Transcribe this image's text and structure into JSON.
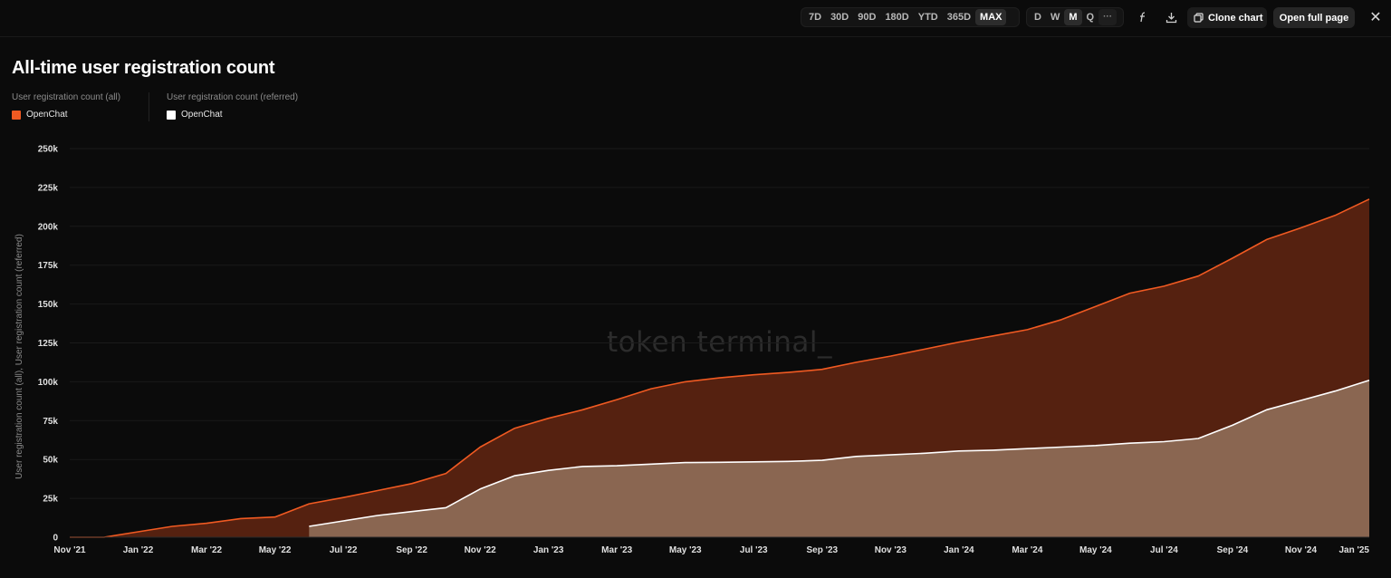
{
  "toolbar": {
    "ranges": [
      "7D",
      "30D",
      "90D",
      "180D",
      "YTD",
      "365D",
      "MAX"
    ],
    "active_range": "MAX",
    "granularity": [
      "D",
      "W",
      "M",
      "Q"
    ],
    "active_granularity": "M",
    "more_label": "···",
    "clone_label": "Clone chart",
    "open_full_label": "Open full page",
    "formula_icon": "function-icon",
    "download_icon": "download-icon",
    "close_icon": "close-icon"
  },
  "chart_data": {
    "type": "area",
    "title": "All-time user registration count",
    "ylabel": "User registration count (all), User registration count (referred)",
    "ylim": [
      0,
      250000
    ],
    "y_ticks": [
      "0",
      "25k",
      "50k",
      "75k",
      "100k",
      "125k",
      "150k",
      "175k",
      "200k",
      "225k",
      "250k"
    ],
    "x_ticks": [
      "Nov '21",
      "Jan '22",
      "Mar '22",
      "May '22",
      "Jul '22",
      "Sep '22",
      "Nov '22",
      "Jan '23",
      "Mar '23",
      "May '23",
      "Jul '23",
      "Sep '23",
      "Nov '23",
      "Jan '24",
      "Mar '24",
      "May '24",
      "Jul '24",
      "Sep '24",
      "Nov '24",
      "Jan '25"
    ],
    "x": [
      "2021-11",
      "2021-12",
      "2022-01",
      "2022-02",
      "2022-03",
      "2022-04",
      "2022-05",
      "2022-06",
      "2022-07",
      "2022-08",
      "2022-09",
      "2022-10",
      "2022-11",
      "2022-12",
      "2023-01",
      "2023-02",
      "2023-03",
      "2023-04",
      "2023-05",
      "2023-06",
      "2023-07",
      "2023-08",
      "2023-09",
      "2023-10",
      "2023-11",
      "2023-12",
      "2024-01",
      "2024-02",
      "2024-03",
      "2024-04",
      "2024-05",
      "2024-06",
      "2024-07",
      "2024-08",
      "2024-09",
      "2024-10",
      "2024-11",
      "2024-12",
      "2025-01"
    ],
    "legend_placement": "top-left",
    "grid": true,
    "series": [
      {
        "group": "User registration count (all)",
        "name": "OpenChat",
        "color": "#f05a22",
        "fill": "#552110",
        "values": [
          0,
          0,
          3500,
          7000,
          9000,
          12000,
          13000,
          21500,
          25500,
          30000,
          34500,
          41000,
          58000,
          70000,
          76500,
          82000,
          88500,
          95500,
          100000,
          102500,
          104500,
          106000,
          108000,
          112500,
          116500,
          121000,
          125500,
          129500,
          133500,
          140000,
          148500,
          157000,
          161500,
          168000,
          179500,
          191500,
          199000,
          207000,
          217500
        ]
      },
      {
        "group": "User registration count (referred)",
        "name": "OpenChat",
        "color": "#ffffff",
        "fill": "#8a6651",
        "values": [
          null,
          null,
          null,
          null,
          null,
          null,
          null,
          7000,
          10500,
          14000,
          16500,
          19000,
          31000,
          39500,
          43000,
          45500,
          46000,
          47000,
          48000,
          48200,
          48500,
          48800,
          49500,
          52000,
          53000,
          54000,
          55500,
          56000,
          57000,
          58000,
          59000,
          60500,
          61500,
          63500,
          72000,
          82000,
          88000,
          94000,
          101000
        ]
      }
    ]
  },
  "watermark": "token terminal_"
}
